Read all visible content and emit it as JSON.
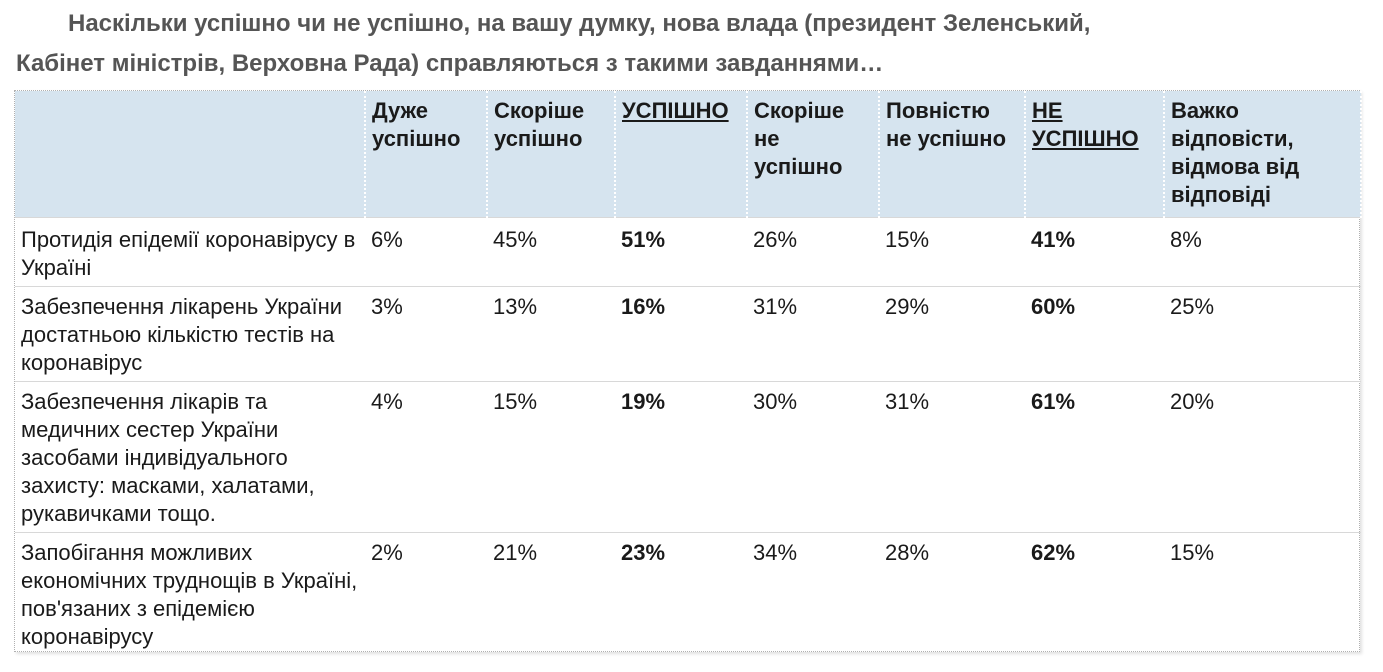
{
  "title": {
    "line1": "Наскільки успішно чи не успішно, на вашу думку, нова влада (президент Зеленський,",
    "line2": "Кабінет міністрів, Верховна Рада) справляються з такими завданнями…"
  },
  "table": {
    "headers": [
      "",
      "Дуже успішно",
      "Скоріше успішно",
      "УСПІШНО",
      "Скоріше не успішно",
      "Повністю не успішно",
      "НЕ УСПІШНО",
      "Важко відповісти, відмова від відповіді"
    ],
    "rows": [
      [
        "Протидія епідемії коронавірусу в Україні",
        "6%",
        "45%",
        "51%",
        "26%",
        "15%",
        "41%",
        "8%"
      ],
      [
        "Забезпечення лікарень України достатньою кількістю тестів на коронавірус",
        "3%",
        "13%",
        "16%",
        "31%",
        "29%",
        "60%",
        "25%"
      ],
      [
        "Забезпечення лікарів та медичних сестер України засобами індивідуального захисту: масками, халатами, рукавичками тощо.",
        "4%",
        "15%",
        "19%",
        "30%",
        "31%",
        "61%",
        "20%"
      ],
      [
        "Запобігання можливих економічних труднощів в Україні, пов'язаних з епідемією коронавірусу",
        "2%",
        "21%",
        "23%",
        "34%",
        "28%",
        "62%",
        "15%"
      ]
    ]
  },
  "colors": {
    "header_bg": "#d6e4ef",
    "title_text": "#555555",
    "body_text": "#1a1a1a"
  }
}
